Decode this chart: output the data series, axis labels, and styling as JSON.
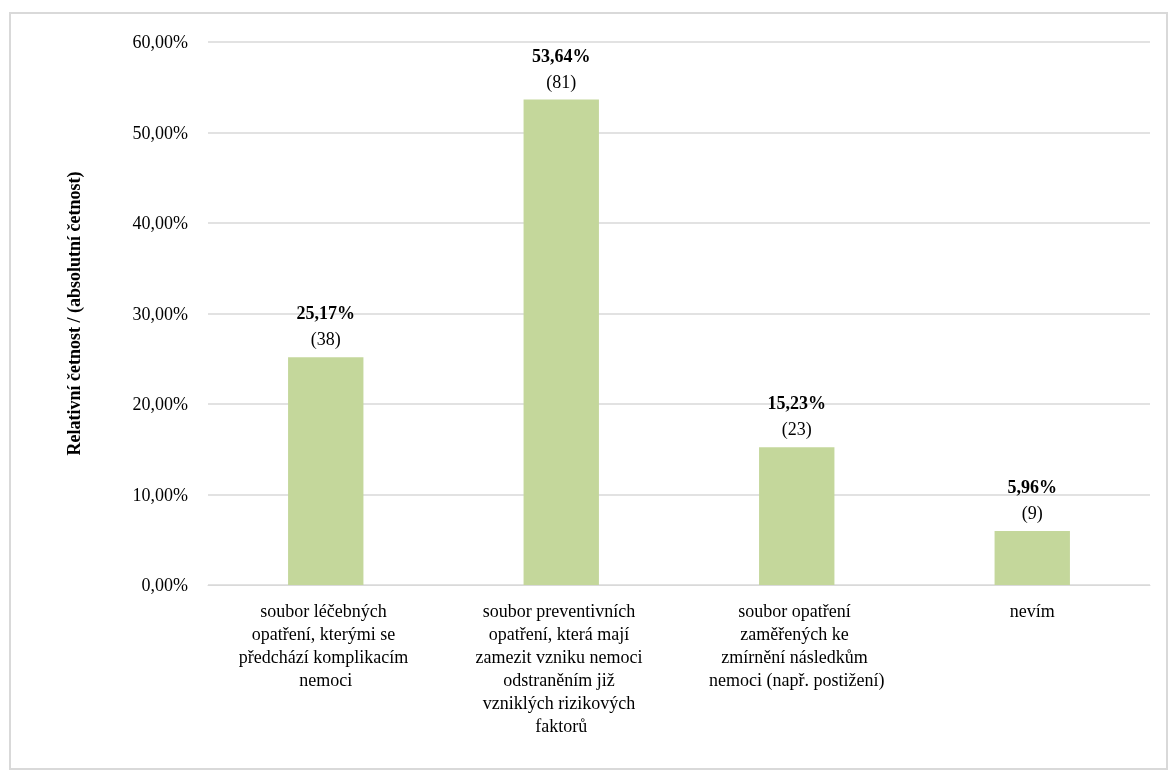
{
  "chart_data": {
    "type": "bar",
    "ylabel": "Relativní četnost / (absolutní četnost)",
    "categories": [
      "soubor léčebných opatření, kterými se předchází komplikacím nemoci",
      "soubor preventivních opatření, která mají zamezit vzniku nemoci odstraněním již vzniklých rizikových faktorů",
      "soubor opatření zaměřených ke zmírnění následkům nemoci (např. postižení)",
      "nevím"
    ],
    "values": [
      25.17,
      53.64,
      15.23,
      5.96
    ],
    "value_labels": [
      "25,17%\n(38)",
      "53,64%\n(81)",
      "15,23%\n(23)",
      "5,96%\n(9)"
    ],
    "color": "#c4d79b",
    "ylim": [
      0,
      60
    ],
    "yticks": [
      {
        "value": 0,
        "label": "0,00%"
      },
      {
        "value": 10,
        "label": "10,00%"
      },
      {
        "value": 20,
        "label": "20,00%"
      },
      {
        "value": 30,
        "label": "30,00%"
      },
      {
        "value": 40,
        "label": "40,00%"
      },
      {
        "value": 50,
        "label": "50,00%"
      },
      {
        "value": 60,
        "label": "60,00%"
      }
    ],
    "grid": "y"
  }
}
